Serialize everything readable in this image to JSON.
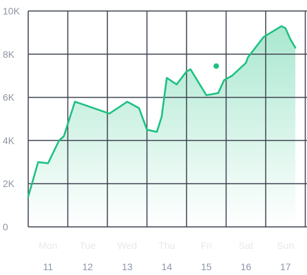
{
  "chart_data": {
    "type": "area",
    "title": "",
    "xlabel": "",
    "ylabel": "",
    "ylim": [
      0,
      10000
    ],
    "y_ticks": [
      0,
      2000,
      4000,
      6000,
      8000,
      10000
    ],
    "y_tick_labels": [
      "0",
      "2K",
      "4K",
      "6K",
      "8K",
      "10K"
    ],
    "x_days": [
      "Mon",
      "Tue",
      "Wed",
      "Thu",
      "Fri",
      "Sat",
      "Sun"
    ],
    "x_dates": [
      "11",
      "12",
      "13",
      "14",
      "15",
      "16",
      "17"
    ],
    "grid": true,
    "legend": "none",
    "colors": {
      "line": "#1ec182",
      "fill_top": "#1ec182",
      "grid": "#3f4451",
      "marker": "#1ec182"
    },
    "series": [
      {
        "x": [
          10.5,
          10.75,
          11.0,
          11.28,
          11.4,
          11.68,
          12.0,
          12.55,
          12.8,
          13.0,
          13.3,
          13.5,
          13.75,
          13.87,
          14.0,
          14.25,
          14.5,
          14.6,
          15.0,
          15.3,
          15.45,
          15.65,
          16.0,
          16.05,
          16.45,
          16.9,
          17.0,
          17.12,
          17.25
        ],
        "y": [
          1400,
          3000,
          2950,
          4000,
          4200,
          5800,
          5600,
          5250,
          5550,
          5800,
          5500,
          4500,
          4400,
          5100,
          6900,
          6600,
          7200,
          7300,
          6100,
          6200,
          6800,
          7000,
          7600,
          7850,
          8800,
          9300,
          9200,
          8700,
          8300
        ]
      }
    ],
    "highlight_point": {
      "x": 15.25,
      "y": 7450
    }
  }
}
